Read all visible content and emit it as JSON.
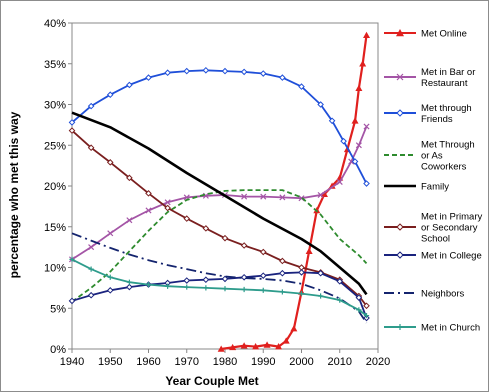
{
  "chart_data": {
    "type": "line",
    "xlabel": "Year Couple Met",
    "ylabel": "percentage who met this way",
    "xlim": [
      1940,
      2020
    ],
    "ylim": [
      0,
      40
    ],
    "x_ticks": [
      "1940",
      "1950",
      "1960",
      "1970",
      "1980",
      "1990",
      "2000",
      "2010",
      "2020"
    ],
    "y_ticks": [
      "0%",
      "5%",
      "10%",
      "15%",
      "20%",
      "25%",
      "30%",
      "35%",
      "40%"
    ],
    "grid": false,
    "legend_position": "right",
    "series": [
      {
        "name": "Met Online",
        "color": "#e0201e",
        "style": "solid",
        "marker": "triangle",
        "points": [
          [
            1979,
            0
          ],
          [
            1982,
            0.2
          ],
          [
            1985,
            0.4
          ],
          [
            1988,
            0.3
          ],
          [
            1991,
            0.5
          ],
          [
            1994,
            0.3
          ],
          [
            1996,
            1
          ],
          [
            1998,
            2.5
          ],
          [
            2000,
            7
          ],
          [
            2002,
            12
          ],
          [
            2004,
            17
          ],
          [
            2006,
            19
          ],
          [
            2008,
            20
          ],
          [
            2010,
            21
          ],
          [
            2012,
            24.5
          ],
          [
            2014,
            28
          ],
          [
            2015,
            32
          ],
          [
            2016,
            35
          ],
          [
            2017,
            38.5
          ]
        ]
      },
      {
        "name": "Met in Bar or Restaurant",
        "label_lines": [
          "Met in Bar or",
          "Restaurant"
        ],
        "color": "#a455a6",
        "style": "solid",
        "marker": "x",
        "points": [
          [
            1940,
            11
          ],
          [
            1945,
            12.5
          ],
          [
            1950,
            14.2
          ],
          [
            1955,
            15.8
          ],
          [
            1960,
            17
          ],
          [
            1965,
            18
          ],
          [
            1970,
            18.6
          ],
          [
            1975,
            18.8
          ],
          [
            1980,
            18.9
          ],
          [
            1985,
            18.7
          ],
          [
            1990,
            18.7
          ],
          [
            1995,
            18.6
          ],
          [
            2000,
            18.5
          ],
          [
            2005,
            18.9
          ],
          [
            2010,
            20.5
          ],
          [
            2013,
            23
          ],
          [
            2015,
            25
          ],
          [
            2017,
            27.3
          ]
        ]
      },
      {
        "name": "Met through Friends",
        "label_lines": [
          "Met through",
          "Friends"
        ],
        "color": "#1f4fd9",
        "style": "solid",
        "marker": "diamond",
        "points": [
          [
            1940,
            27.8
          ],
          [
            1945,
            29.8
          ],
          [
            1950,
            31.2
          ],
          [
            1955,
            32.4
          ],
          [
            1960,
            33.3
          ],
          [
            1965,
            33.9
          ],
          [
            1970,
            34.1
          ],
          [
            1975,
            34.2
          ],
          [
            1980,
            34.1
          ],
          [
            1985,
            34
          ],
          [
            1990,
            33.8
          ],
          [
            1995,
            33.3
          ],
          [
            2000,
            32.2
          ],
          [
            2005,
            30
          ],
          [
            2008,
            28
          ],
          [
            2011,
            25.5
          ],
          [
            2014,
            23
          ],
          [
            2017,
            20.3
          ]
        ]
      },
      {
        "name": "Met Through or As Coworkers",
        "label_lines": [
          "Met Through",
          "or As",
          "Coworkers"
        ],
        "color": "#2e8b2e",
        "style": "dashed",
        "marker": "none",
        "points": [
          [
            1940,
            5.8
          ],
          [
            1945,
            7.5
          ],
          [
            1950,
            9.5
          ],
          [
            1955,
            12
          ],
          [
            1960,
            14.5
          ],
          [
            1965,
            16.8
          ],
          [
            1970,
            18.3
          ],
          [
            1975,
            19
          ],
          [
            1980,
            19.4
          ],
          [
            1985,
            19.5
          ],
          [
            1990,
            19.5
          ],
          [
            1995,
            19.5
          ],
          [
            2000,
            18.6
          ],
          [
            2005,
            16.5
          ],
          [
            2010,
            13.5
          ],
          [
            2015,
            11.5
          ],
          [
            2017,
            10.5
          ]
        ]
      },
      {
        "name": "Family",
        "color": "#000000",
        "style": "solid",
        "marker": "none",
        "points": [
          [
            1940,
            29
          ],
          [
            1950,
            27.2
          ],
          [
            1960,
            24.6
          ],
          [
            1970,
            21.6
          ],
          [
            1980,
            18.8
          ],
          [
            1990,
            16
          ],
          [
            2000,
            13.5
          ],
          [
            2005,
            12
          ],
          [
            2010,
            10
          ],
          [
            2015,
            8
          ],
          [
            2017,
            6.7
          ]
        ]
      },
      {
        "name": "Met in Primary or Secondary School",
        "label_lines": [
          "Met in Primary",
          "or Secondary",
          "School"
        ],
        "color": "#7a1f1f",
        "style": "solid",
        "marker": "diamond",
        "points": [
          [
            1940,
            26.8
          ],
          [
            1945,
            24.7
          ],
          [
            1950,
            22.9
          ],
          [
            1955,
            21
          ],
          [
            1960,
            19.1
          ],
          [
            1965,
            17.3
          ],
          [
            1970,
            16
          ],
          [
            1975,
            14.8
          ],
          [
            1980,
            13.6
          ],
          [
            1985,
            12.7
          ],
          [
            1990,
            11.9
          ],
          [
            1995,
            10.8
          ],
          [
            2000,
            10
          ],
          [
            2005,
            9.4
          ],
          [
            2010,
            8.5
          ],
          [
            2015,
            6.5
          ],
          [
            2017,
            5.3
          ]
        ]
      },
      {
        "name": "Met in College",
        "color": "#1a237e",
        "style": "solid",
        "marker": "diamond",
        "points": [
          [
            1940,
            5.9
          ],
          [
            1945,
            6.6
          ],
          [
            1950,
            7.2
          ],
          [
            1955,
            7.6
          ],
          [
            1960,
            7.9
          ],
          [
            1965,
            8.1
          ],
          [
            1970,
            8.4
          ],
          [
            1975,
            8.5
          ],
          [
            1980,
            8.6
          ],
          [
            1985,
            8.8
          ],
          [
            1990,
            9
          ],
          [
            1995,
            9.3
          ],
          [
            2000,
            9.4
          ],
          [
            2005,
            9.3
          ],
          [
            2010,
            8.3
          ],
          [
            2015,
            6.3
          ],
          [
            2017,
            3.8
          ]
        ]
      },
      {
        "name": "Neighbors",
        "color": "#14246e",
        "style": "dashdot",
        "marker": "none",
        "points": [
          [
            1940,
            14.2
          ],
          [
            1945,
            13.3
          ],
          [
            1950,
            12.4
          ],
          [
            1955,
            11.6
          ],
          [
            1960,
            10.9
          ],
          [
            1965,
            10.3
          ],
          [
            1970,
            9.8
          ],
          [
            1975,
            9.3
          ],
          [
            1980,
            8.9
          ],
          [
            1985,
            8.7
          ],
          [
            1990,
            8.6
          ],
          [
            1995,
            8.4
          ],
          [
            2000,
            8
          ],
          [
            2005,
            7.2
          ],
          [
            2010,
            6.2
          ],
          [
            2015,
            4.6
          ],
          [
            2017,
            3.2
          ]
        ]
      },
      {
        "name": "Met in Church",
        "color": "#2e9c8c",
        "style": "solid",
        "marker": "plus",
        "points": [
          [
            1940,
            11
          ],
          [
            1945,
            9.8
          ],
          [
            1950,
            8.8
          ],
          [
            1955,
            8.2
          ],
          [
            1960,
            7.9
          ],
          [
            1965,
            7.7
          ],
          [
            1970,
            7.6
          ],
          [
            1975,
            7.5
          ],
          [
            1980,
            7.4
          ],
          [
            1985,
            7.3
          ],
          [
            1990,
            7.2
          ],
          [
            1995,
            7
          ],
          [
            2000,
            6.8
          ],
          [
            2005,
            6.5
          ],
          [
            2010,
            6
          ],
          [
            2015,
            4.8
          ],
          [
            2017,
            4.1
          ]
        ]
      }
    ]
  }
}
